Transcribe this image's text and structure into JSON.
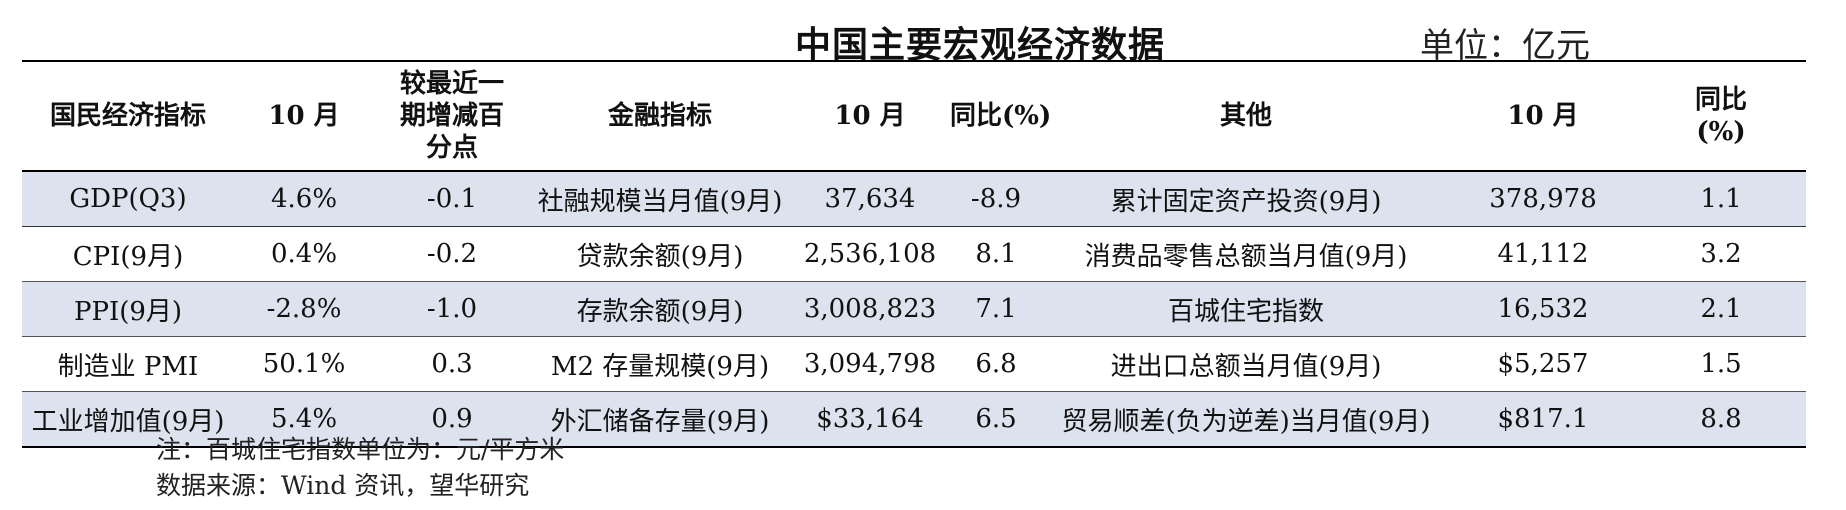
{
  "title": "中国主要宏观经济数据",
  "unit": "单位：亿元",
  "headers": [
    "国民经济指标",
    "10 月",
    "较最近一期增减百分点",
    "金融指标",
    "10 月",
    "同比(%)",
    "其他",
    "10 月",
    "同比(%)"
  ],
  "rows": [
    [
      "GDP(Q3)",
      "4.6%",
      "-0.1",
      "社融规模当月值(9月)",
      "37,634",
      "-8.9",
      "累计固定资产投资(9月)",
      "378,978",
      "1.1"
    ],
    [
      "CPI(9月)",
      "0.4%",
      "-0.2",
      "贷款余额(9月)",
      "2,536,108",
      "8.1",
      "消费品零售总额当月值(9月)",
      "41,112",
      "3.2"
    ],
    [
      "PPI(9月)",
      "-2.8%",
      "-1.0",
      "存款余额(9月)",
      "3,008,823",
      "7.1",
      "百城住宅指数",
      "16,532",
      "2.1"
    ],
    [
      "制造业 PMI",
      "50.1%",
      "0.3",
      "M2 存量规模(9月)",
      "3,094,798",
      "6.8",
      "进出口总额当月值(9月)",
      "$5,257",
      "1.5"
    ],
    [
      "工业增加值(9月)",
      "5.4%",
      "0.9",
      "外汇储备存量(9月)",
      "$33,164",
      "6.5",
      "贸易顺差(负为逆差)当月值(9月)",
      "$817.1",
      "8.8"
    ]
  ],
  "notes": {
    "note": "注：百城住宅指数单位为：元/平方米",
    "source": "数据来源：Wind 资讯，望华研究"
  },
  "colors": {
    "shaded_row": "#dde3ee",
    "rule": "#000000"
  }
}
